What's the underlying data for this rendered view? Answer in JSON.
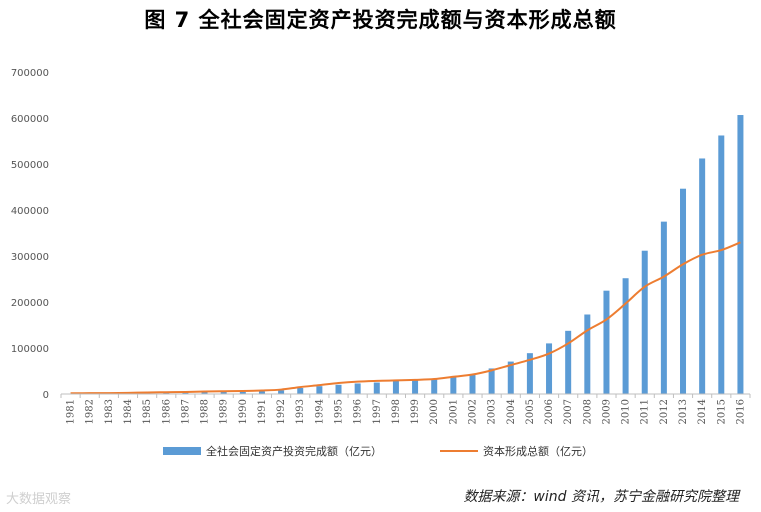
{
  "chart_data": {
    "type": "bar",
    "title": "图 7  全社会固定资产投资完成额与资本形成总额",
    "categories": [
      "1981",
      "1982",
      "1983",
      "1984",
      "1985",
      "1986",
      "1987",
      "1988",
      "1989",
      "1990",
      "1991",
      "1992",
      "1993",
      "1994",
      "1995",
      "1996",
      "1997",
      "1998",
      "1999",
      "2000",
      "2001",
      "2002",
      "2003",
      "2004",
      "2005",
      "2006",
      "2007",
      "2008",
      "2009",
      "2010",
      "2011",
      "2012",
      "2013",
      "2014",
      "2015",
      "2016"
    ],
    "ylim": [
      0,
      700000
    ],
    "yticks": [
      "0",
      "100000",
      "200000",
      "300000",
      "400000",
      "500000",
      "600000",
      "700000"
    ],
    "grid": false,
    "legend_position": "bottom",
    "series": [
      {
        "name": "全社会固定资产投资完成额（亿元）",
        "type": "bar",
        "color": "#5b9bd5",
        "values": [
          961,
          1230,
          1430,
          1833,
          2543,
          3121,
          3792,
          4754,
          4410,
          4517,
          5595,
          8080,
          13072,
          17042,
          20019,
          22914,
          24941,
          28406,
          29855,
          32918,
          37214,
          43500,
          55567,
          70477,
          88774,
          109998,
          137324,
          172828,
          224599,
          251684,
          311485,
          374695,
          446294,
          512021,
          561999,
          606466
        ]
      },
      {
        "name": "资本形成总额（亿元）",
        "type": "line",
        "color": "#ed7d31",
        "values": [
          1630,
          1780,
          2010,
          2470,
          3390,
          3850,
          4320,
          5500,
          6090,
          6440,
          7520,
          9640,
          15000,
          19260,
          23880,
          26870,
          28460,
          29550,
          30700,
          32500,
          37460,
          42300,
          51380,
          62870,
          74230,
          87950,
          109940,
          138330,
          162120,
          196650,
          233330,
          255240,
          282070,
          302720,
          312840,
          329730
        ]
      }
    ]
  },
  "source_note": "数据来源：wind 资讯，苏宁金融研究院整理",
  "watermark": "大数据观察"
}
